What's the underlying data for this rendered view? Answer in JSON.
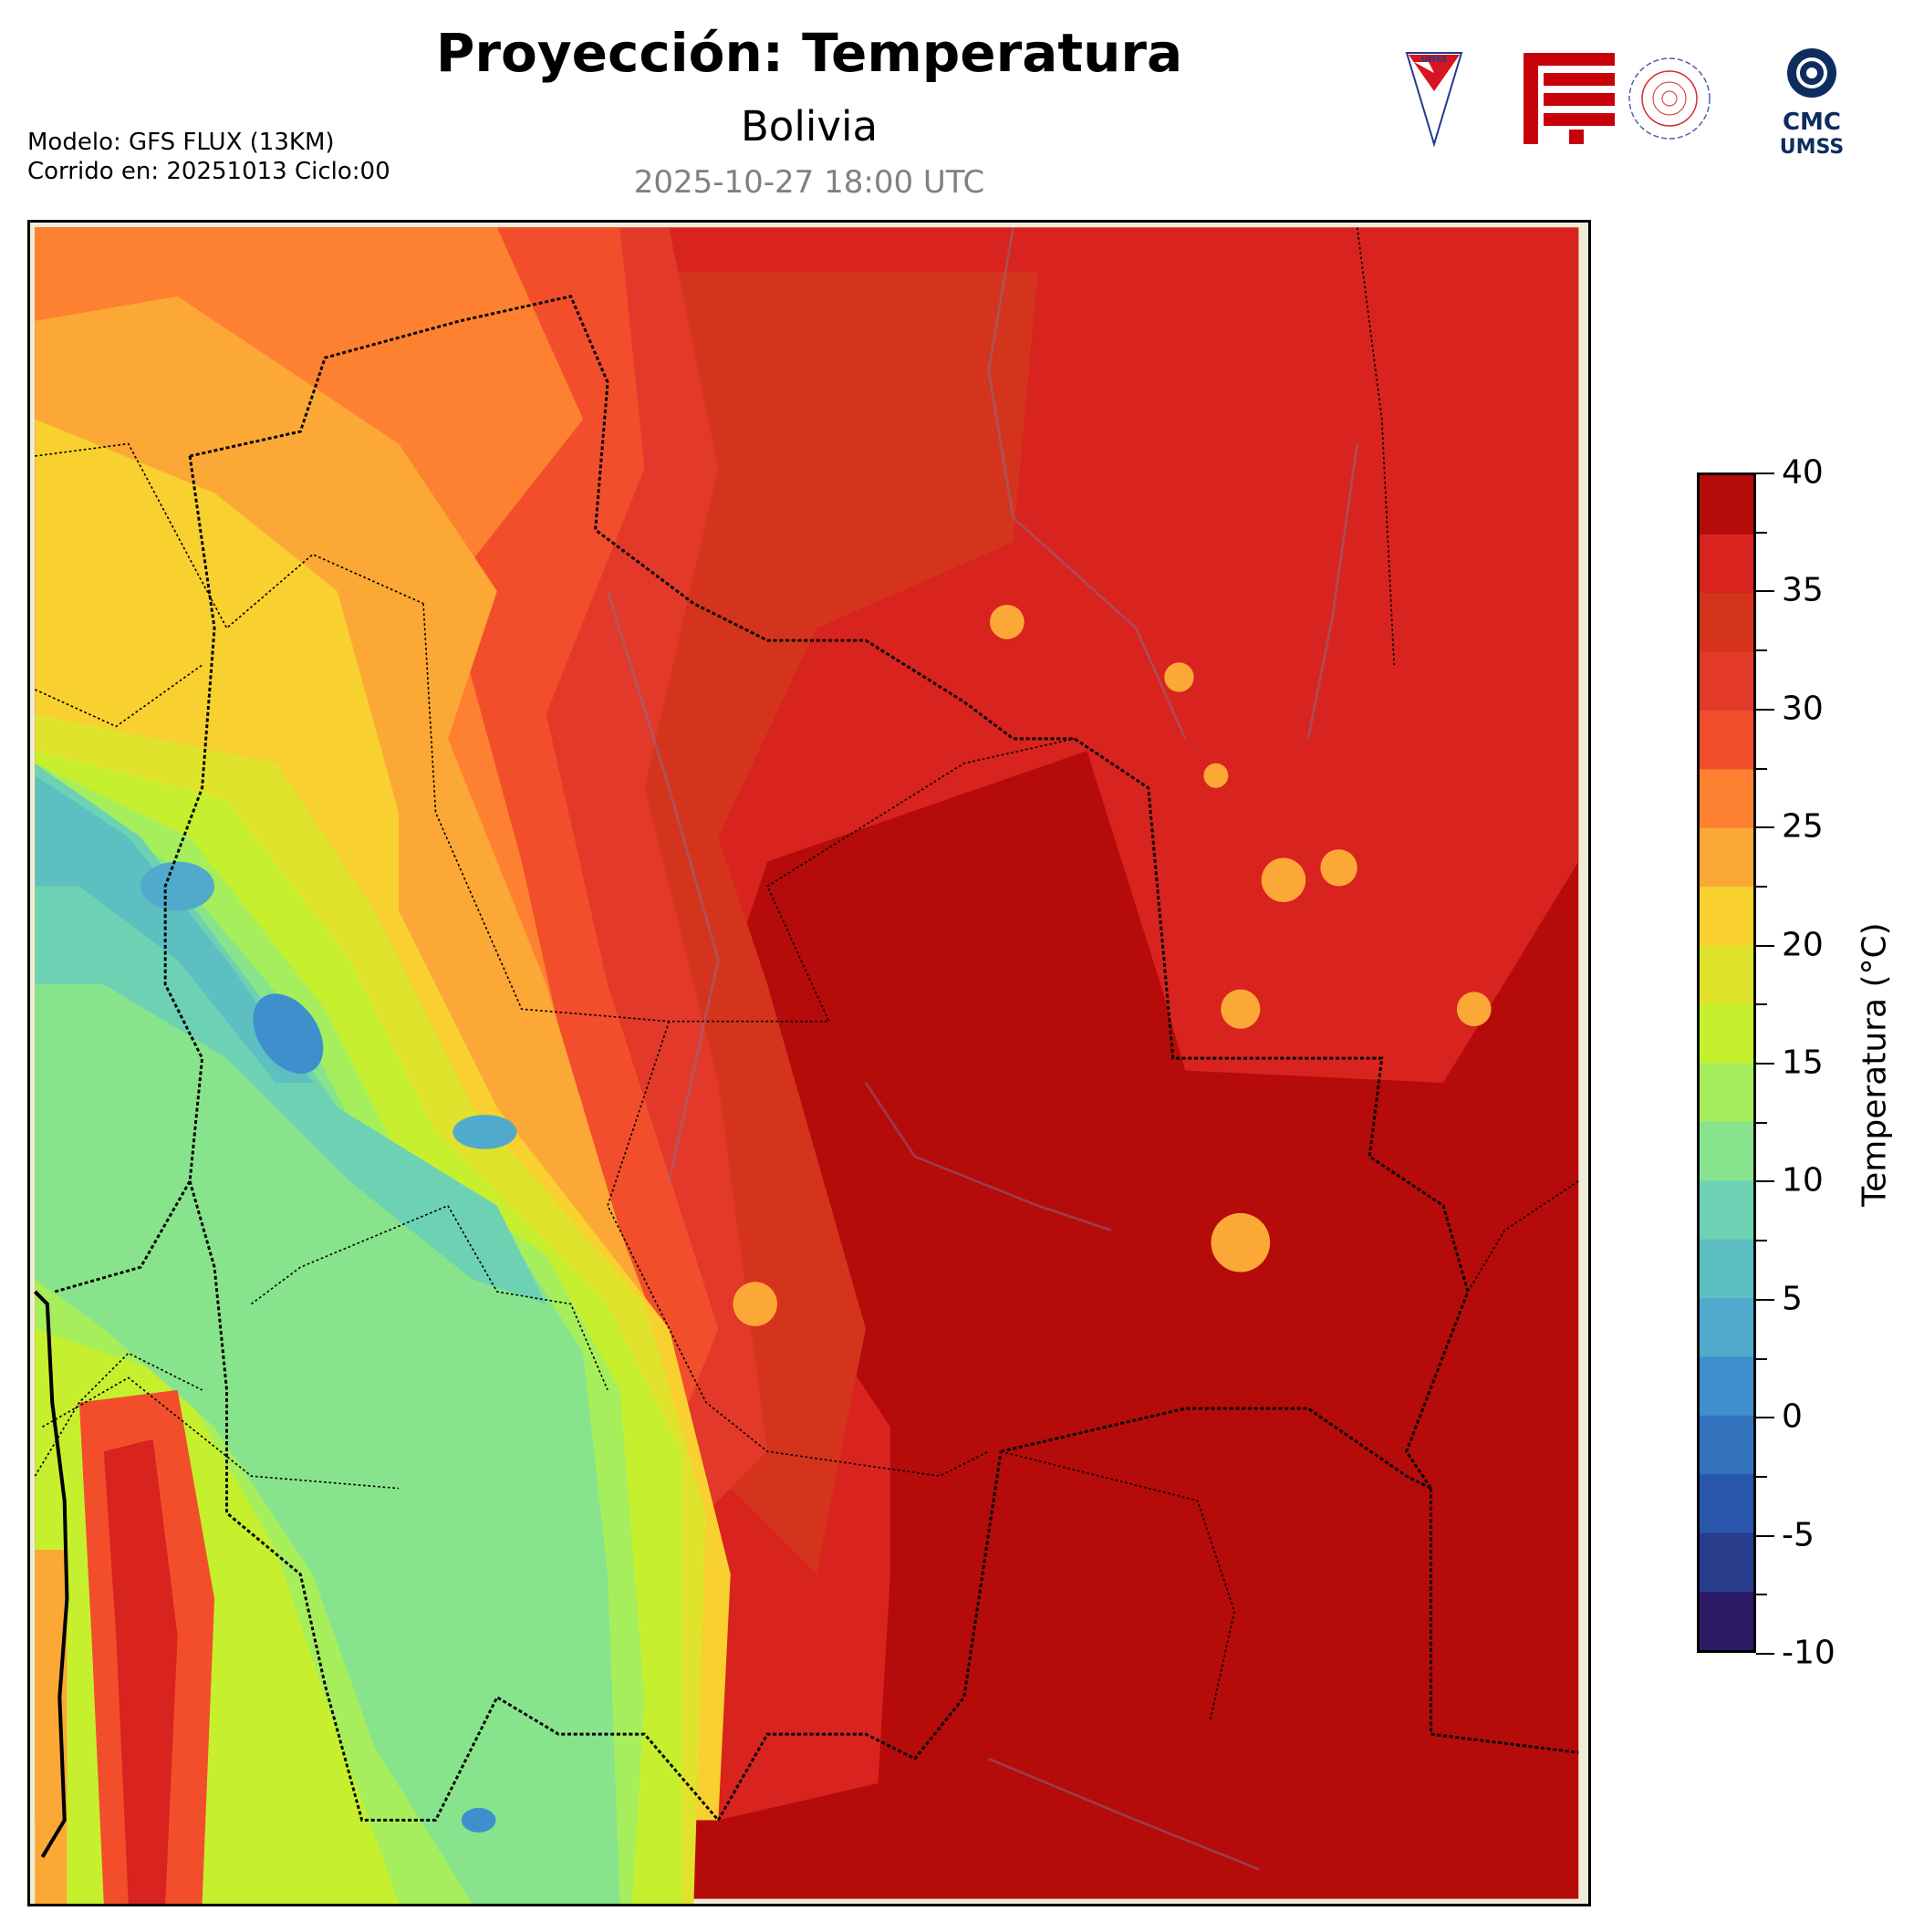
{
  "header": {
    "title": "Proyección: Temperatura",
    "subtitle": "Bolivia",
    "valid_time": "2025-10-27 18:00 UTC",
    "model_line": "Modelo: GFS FLUX (13KM)",
    "run_line": "Corrido en: 20251013 Ciclo:00"
  },
  "logos": {
    "umss_text": "UMSS",
    "cmc_text": "CMC",
    "cmc_sub": "UMSS"
  },
  "chart_data": {
    "type": "heatmap",
    "title": "Proyección: Temperatura",
    "subtitle": "Bolivia",
    "region": "Bolivia",
    "variable": "Temperatura",
    "units": "°C",
    "colorbar": {
      "label": "Temperatura (°C)",
      "range": [
        -10,
        40
      ],
      "levels": [
        -10,
        -7.5,
        -5,
        -2.5,
        0,
        2.5,
        5,
        7.5,
        10,
        12.5,
        15,
        17.5,
        20,
        22.5,
        25,
        27.5,
        30,
        32.5,
        35,
        37.5,
        40
      ],
      "tick_labels": [
        "40",
        "35",
        "30",
        "25",
        "20",
        "15",
        "10",
        "5",
        "0",
        "-5",
        "-10"
      ],
      "tick_values": [
        40,
        35,
        30,
        25,
        20,
        15,
        10,
        5,
        0,
        -5,
        -10
      ],
      "colors": [
        "#2c1a66",
        "#283d8c",
        "#2956ab",
        "#3373be",
        "#3f8fcc",
        "#4faacb",
        "#5ebfc2",
        "#6dd2b3",
        "#88e48c",
        "#a6ee5c",
        "#c6f02e",
        "#e0e32c",
        "#f8d030",
        "#fca836",
        "#fd8131",
        "#f24e2c",
        "#e2392a",
        "#d4341c",
        "#d8231e",
        "#b50b0b"
      ]
    },
    "features": [
      "Bolivia at center; hottest (>37.5 °C) lowlands east/southeast; coolest (0-10 °C) Andean altiplano southwest"
    ]
  }
}
